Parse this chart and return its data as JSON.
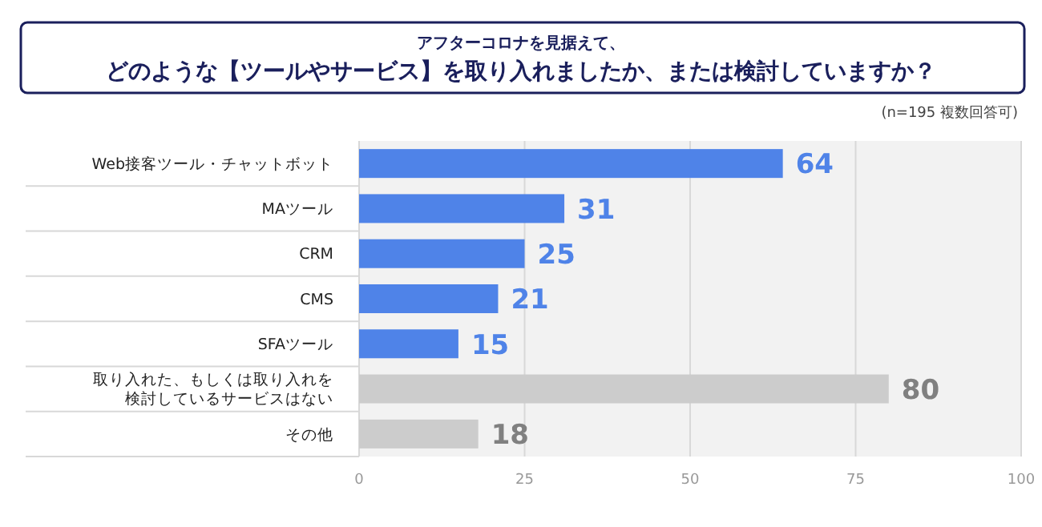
{
  "chart_data": {
    "type": "bar",
    "orientation": "horizontal",
    "subtitle": "アフターコロナを見据えて、",
    "title": "どのような【ツールやサービス】を取り入れましたか、または検討していますか？",
    "annotations": [
      "(n=195 複数回答可)"
    ],
    "categories": [
      "Web接客ツール・チャットボット",
      "MAツール",
      "CRM",
      "CMS",
      "SFAツール",
      "取り入れた、もしくは取り入れを検討しているサービスはない",
      "その他"
    ],
    "values": [
      64,
      31,
      25,
      21,
      15,
      80,
      18
    ],
    "colors": [
      "#4f83e8",
      "#4f83e8",
      "#4f83e8",
      "#4f83e8",
      "#4f83e8",
      "#cccccc",
      "#cccccc"
    ],
    "xlim": [
      0,
      100
    ],
    "xticks": [
      0,
      25,
      50,
      75,
      100
    ],
    "grid": "x",
    "data_labels": true
  }
}
